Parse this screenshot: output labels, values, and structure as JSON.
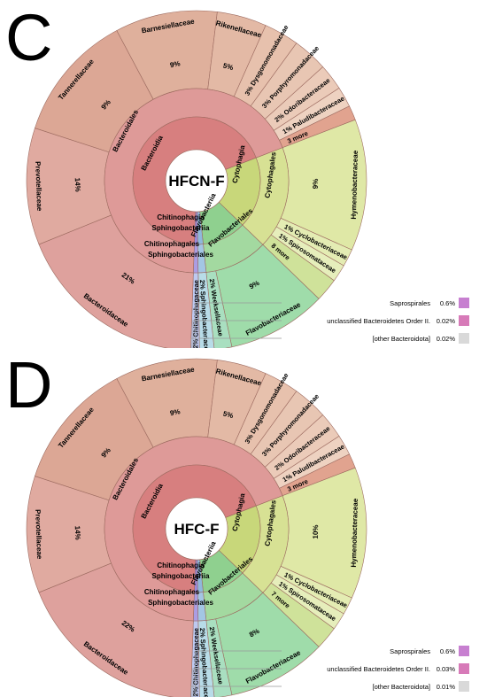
{
  "panels": [
    {
      "letter": "C",
      "center_label": "HFCN-F",
      "class_labels": [
        "Bacteroidia",
        "Cytophagia",
        "Flavobacteriia",
        "Chitinophagia",
        "Sphingobacteriia"
      ],
      "order_labels": [
        "Bacteroidales",
        "Cytophagales",
        "Flavobacteriales",
        "Chitinophagales",
        "Sphingobacteriales"
      ],
      "families": [
        {
          "name": "Tannerellaceae",
          "pct": "9%"
        },
        {
          "name": "Barnesiellaceae",
          "pct": "9%"
        },
        {
          "name": "Rikenellaceae",
          "pct": "5%"
        },
        {
          "name": "Dysgonomonadaceae",
          "pct": "3%"
        },
        {
          "name": "Porphyromonadaceae",
          "pct": "3%"
        },
        {
          "name": "Odoribacteraceae",
          "pct": "2%"
        },
        {
          "name": "Paludibacteraceae",
          "pct": "1%"
        },
        {
          "name": "3 more",
          "pct": ""
        },
        {
          "name": "Hymenobacteraceae",
          "pct": "9%"
        },
        {
          "name": "Cyclobacteriaceae",
          "pct": "1%"
        },
        {
          "name": "Spirosomataceae",
          "pct": "1%"
        },
        {
          "name": "8 more",
          "pct": ""
        },
        {
          "name": "Flavobacteriaceae",
          "pct": "9%"
        },
        {
          "name": "Weeksellaceae",
          "pct": "2%"
        },
        {
          "name": "Sphingobacteriaceae",
          "pct": "2%"
        },
        {
          "name": "Chitinophagaceae",
          "pct": "2%"
        },
        {
          "name": "Bacteroidaceae",
          "pct": "21%"
        },
        {
          "name": "Prevotellaceae",
          "pct": "14%"
        }
      ],
      "legend": [
        {
          "label": "Saprospirales",
          "value": "0.6%",
          "color": "#c77fd0"
        },
        {
          "label": "unclassified Bacteroidetes Order II.",
          "value": "0.02%",
          "color": "#d77ab8"
        },
        {
          "label": "[other Bacteroidota]",
          "value": "0.02%",
          "color": "#d9d9d9"
        }
      ]
    },
    {
      "letter": "D",
      "center_label": "HFC-F",
      "class_labels": [
        "Bacteroidia",
        "Cytophagia",
        "Flavobacteriia",
        "Chitinophagia",
        "Sphingobacteriia"
      ],
      "order_labels": [
        "Bacteroidales",
        "Cytophagales",
        "Flavobacteriales",
        "Chitinophagales",
        "Sphingobacteriales"
      ],
      "families": [
        {
          "name": "Tannerellaceae",
          "pct": "9%"
        },
        {
          "name": "Barnesiellaceae",
          "pct": "9%"
        },
        {
          "name": "Rikenellaceae",
          "pct": "5%"
        },
        {
          "name": "Dysgonomonadaceae",
          "pct": "3%"
        },
        {
          "name": "Porphyromonadaceae",
          "pct": "3%"
        },
        {
          "name": "Odoribacteraceae",
          "pct": "2%"
        },
        {
          "name": "Paludibacteraceae",
          "pct": "1%"
        },
        {
          "name": "3 more",
          "pct": ""
        },
        {
          "name": "Hymenobacteraceae",
          "pct": "10%"
        },
        {
          "name": "Cyclobacteriaceae",
          "pct": "1%"
        },
        {
          "name": "Spirosomataceae",
          "pct": "1%"
        },
        {
          "name": "7 more",
          "pct": ""
        },
        {
          "name": "Flavobacteriaceae",
          "pct": "8%"
        },
        {
          "name": "Weeksellaceae",
          "pct": "2%"
        },
        {
          "name": "Sphingobacteriaceae",
          "pct": "2%"
        },
        {
          "name": "Chitinophagaceae",
          "pct": "2%"
        },
        {
          "name": "Bacteroidaceae",
          "pct": "22%"
        },
        {
          "name": "Prevotellaceae",
          "pct": "14%"
        }
      ],
      "legend": [
        {
          "label": "Saprospirales",
          "value": "0.6%",
          "color": "#c77fd0"
        },
        {
          "label": "unclassified Bacteroidetes Order II.",
          "value": "0.03%",
          "color": "#d77ab8"
        },
        {
          "label": "[other Bacteroidota]",
          "value": "0.01%",
          "color": "#d9d9d9"
        }
      ]
    }
  ],
  "chart_data": [
    {
      "type": "pie",
      "center": "HFCN-F",
      "rings": {
        "class": [
          "Bacteroidia",
          "Cytophagia",
          "Flavobacteriia",
          "Chitinophagia",
          "Sphingobacteriia"
        ],
        "order": [
          "Bacteroidales",
          "Cytophagales",
          "Flavobacteriales",
          "Chitinophagales",
          "Sphingobacteriales"
        ]
      },
      "families": [
        {
          "name": "Tannerellaceae",
          "value": 9
        },
        {
          "name": "Barnesiellaceae",
          "value": 9
        },
        {
          "name": "Rikenellaceae",
          "value": 5
        },
        {
          "name": "Dysgonomonadaceae",
          "value": 3
        },
        {
          "name": "Porphyromonadaceae",
          "value": 3
        },
        {
          "name": "Odoribacteraceae",
          "value": 2
        },
        {
          "name": "Paludibacteraceae",
          "value": 1
        },
        {
          "name": "3 more",
          "value": 1
        },
        {
          "name": "Hymenobacteraceae",
          "value": 9
        },
        {
          "name": "Cyclobacteriaceae",
          "value": 1
        },
        {
          "name": "Spirosomataceae",
          "value": 1
        },
        {
          "name": "8 more",
          "value": 1
        },
        {
          "name": "Flavobacteriaceae",
          "value": 9
        },
        {
          "name": "Weeksellaceae",
          "value": 2
        },
        {
          "name": "Sphingobacteriaceae",
          "value": 2
        },
        {
          "name": "Chitinophagaceae",
          "value": 2
        },
        {
          "name": "Bacteroidaceae",
          "value": 21
        },
        {
          "name": "Prevotellaceae",
          "value": 14
        }
      ],
      "legend": [
        {
          "name": "Saprospirales",
          "value": 0.6
        },
        {
          "name": "unclassified Bacteroidetes Order II.",
          "value": 0.02
        },
        {
          "name": "[other Bacteroidota]",
          "value": 0.02
        }
      ]
    },
    {
      "type": "pie",
      "center": "HFC-F",
      "rings": {
        "class": [
          "Bacteroidia",
          "Cytophagia",
          "Flavobacteriia",
          "Chitinophagia",
          "Sphingobacteriia"
        ],
        "order": [
          "Bacteroidales",
          "Cytophagales",
          "Flavobacteriales",
          "Chitinophagales",
          "Sphingobacteriales"
        ]
      },
      "families": [
        {
          "name": "Tannerellaceae",
          "value": 9
        },
        {
          "name": "Barnesiellaceae",
          "value": 9
        },
        {
          "name": "Rikenellaceae",
          "value": 5
        },
        {
          "name": "Dysgonomonadaceae",
          "value": 3
        },
        {
          "name": "Porphyromonadaceae",
          "value": 3
        },
        {
          "name": "Odoribacteraceae",
          "value": 2
        },
        {
          "name": "Paludibacteraceae",
          "value": 1
        },
        {
          "name": "3 more",
          "value": 1
        },
        {
          "name": "Hymenobacteraceae",
          "value": 10
        },
        {
          "name": "Cyclobacteriaceae",
          "value": 1
        },
        {
          "name": "Spirosomataceae",
          "value": 1
        },
        {
          "name": "7 more",
          "value": 1
        },
        {
          "name": "Flavobacteriaceae",
          "value": 8
        },
        {
          "name": "Weeksellaceae",
          "value": 2
        },
        {
          "name": "Sphingobacteriaceae",
          "value": 2
        },
        {
          "name": "Chitinophagaceae",
          "value": 2
        },
        {
          "name": "Bacteroidaceae",
          "value": 22
        },
        {
          "name": "Prevotellaceae",
          "value": 14
        }
      ],
      "legend": [
        {
          "name": "Saprospirales",
          "value": 0.6
        },
        {
          "name": "unclassified Bacteroidetes Order II.",
          "value": 0.03
        },
        {
          "name": "[other Bacteroidota]",
          "value": 0.01
        }
      ]
    }
  ]
}
